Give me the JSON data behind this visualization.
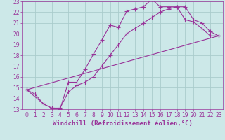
{
  "background_color": "#cce8e8",
  "grid_color": "#aacccc",
  "line_color": "#993399",
  "xlim": [
    -0.5,
    23.5
  ],
  "ylim": [
    13,
    23
  ],
  "xticks": [
    0,
    1,
    2,
    3,
    4,
    5,
    6,
    7,
    8,
    9,
    10,
    11,
    12,
    13,
    14,
    15,
    16,
    17,
    18,
    19,
    20,
    21,
    22,
    23
  ],
  "yticks": [
    13,
    14,
    15,
    16,
    17,
    18,
    19,
    20,
    21,
    22,
    23
  ],
  "xlabel": "Windchill (Refroidissement éolien,°C)",
  "line1_x": [
    0,
    1,
    2,
    3,
    4,
    5,
    6,
    7,
    8,
    9,
    10,
    11,
    12,
    13,
    14,
    15,
    16,
    17,
    18,
    19,
    20,
    21,
    22,
    23
  ],
  "line1_y": [
    14.8,
    14.4,
    13.5,
    13.1,
    13.0,
    15.5,
    15.5,
    16.7,
    18.1,
    19.4,
    20.8,
    20.6,
    22.1,
    22.3,
    22.5,
    23.2,
    22.5,
    22.5,
    22.5,
    21.3,
    21.1,
    20.5,
    19.8,
    19.8
  ],
  "line2_x": [
    0,
    2,
    3,
    4,
    5,
    6,
    7,
    8,
    9,
    10,
    11,
    12,
    13,
    14,
    15,
    16,
    17,
    18,
    19,
    20,
    21,
    22,
    23
  ],
  "line2_y": [
    14.8,
    13.5,
    13.1,
    13.1,
    14.6,
    15.2,
    15.5,
    16.0,
    17.0,
    18.0,
    19.0,
    20.0,
    20.5,
    21.0,
    21.5,
    22.0,
    22.3,
    22.5,
    22.5,
    21.3,
    21.0,
    20.2,
    19.8
  ],
  "line3_x": [
    0,
    23
  ],
  "line3_y": [
    14.8,
    19.8
  ],
  "tick_fontsize": 5.5,
  "label_fontsize": 6.5,
  "markersize": 3,
  "linewidth": 0.8
}
